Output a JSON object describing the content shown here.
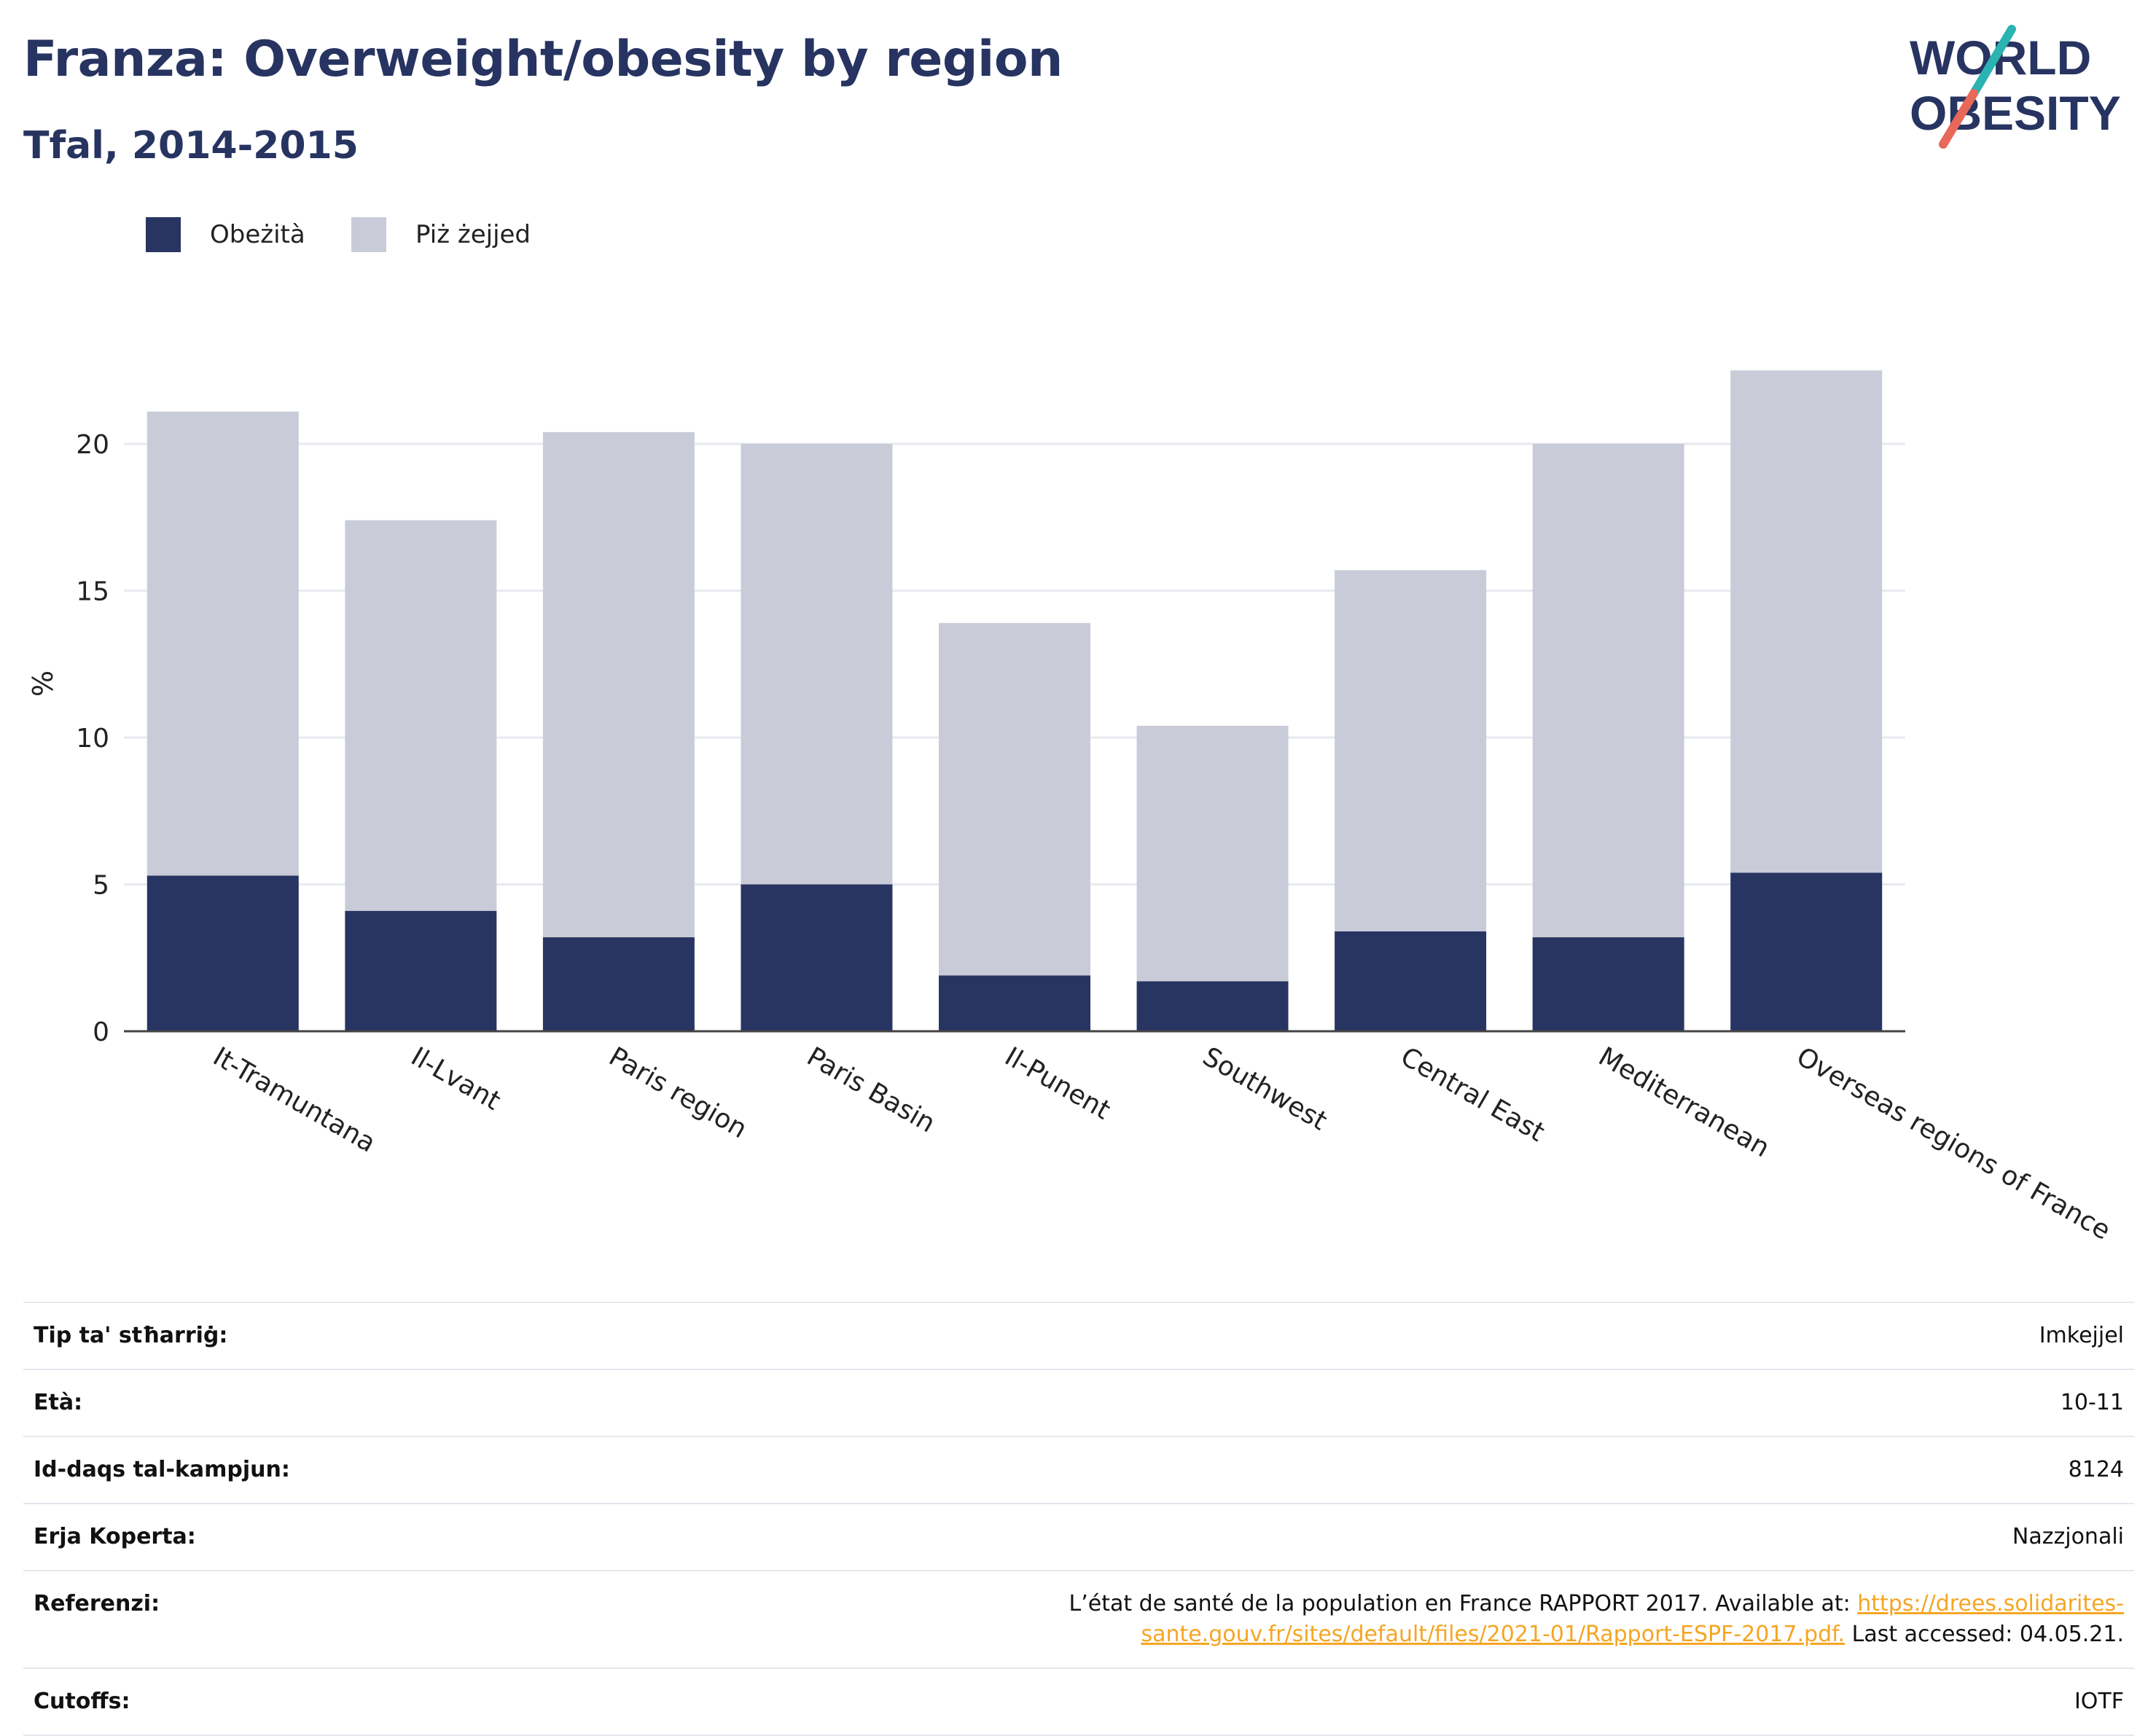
{
  "header": {
    "title": "Franza: Overweight/obesity by region",
    "subtitle": "Tfal, 2014-2015"
  },
  "logo": {
    "line1": "WORLD",
    "line2": "OBESITY",
    "colors": {
      "text": "#273461",
      "slash_top": "#2ab3b1",
      "slash_bottom": "#e8685a"
    }
  },
  "legend": [
    {
      "label": "Obeżità",
      "color": "#283562"
    },
    {
      "label": "Piż żejjed",
      "color": "#c9ccd8"
    }
  ],
  "chart_data": {
    "type": "bar",
    "stacked": true,
    "categories": [
      "It-Tramuntana",
      "Il-Lvant",
      "Paris region",
      "Paris Basin",
      "Il-Punent",
      "Southwest",
      "Central East",
      "Mediterranean",
      "Overseas regions of France"
    ],
    "series": [
      {
        "name": "Obeżità",
        "values": [
          5.3,
          4.1,
          3.2,
          5.0,
          1.9,
          1.7,
          3.4,
          3.2,
          5.4
        ],
        "color": "#283562"
      },
      {
        "name": "Piż żejjed",
        "values": [
          15.8,
          13.3,
          17.2,
          15.0,
          12.0,
          8.7,
          12.3,
          16.8,
          17.1
        ],
        "color": "#c9ccd8"
      }
    ],
    "ylabel": "%",
    "yticks": [
      0,
      5,
      10,
      15,
      20
    ],
    "ylim": [
      0,
      22.5
    ],
    "grid": true,
    "legend_position": "top-left"
  },
  "info": [
    {
      "key": "Tip ta' stħarriġ:",
      "value": "Imkejjel"
    },
    {
      "key": "Età:",
      "value": "10-11"
    },
    {
      "key": "Id-daqs tal-kampjun:",
      "value": "8124"
    },
    {
      "key": "Erja Koperta:",
      "value": "Nazzjonali"
    },
    {
      "key": "Referenzi:",
      "value_pre": "L’état de santé de la population en France RAPPORT 2017. Available at: ",
      "link_text": "https://drees.solidarites-sante.gouv.fr/sites/default/files/2021-01/Rapport-ESPF-2017.pdf.",
      "value_post": " Last accessed: 04.05.21."
    },
    {
      "key": "Cutoffs:",
      "value": "IOTF"
    }
  ]
}
